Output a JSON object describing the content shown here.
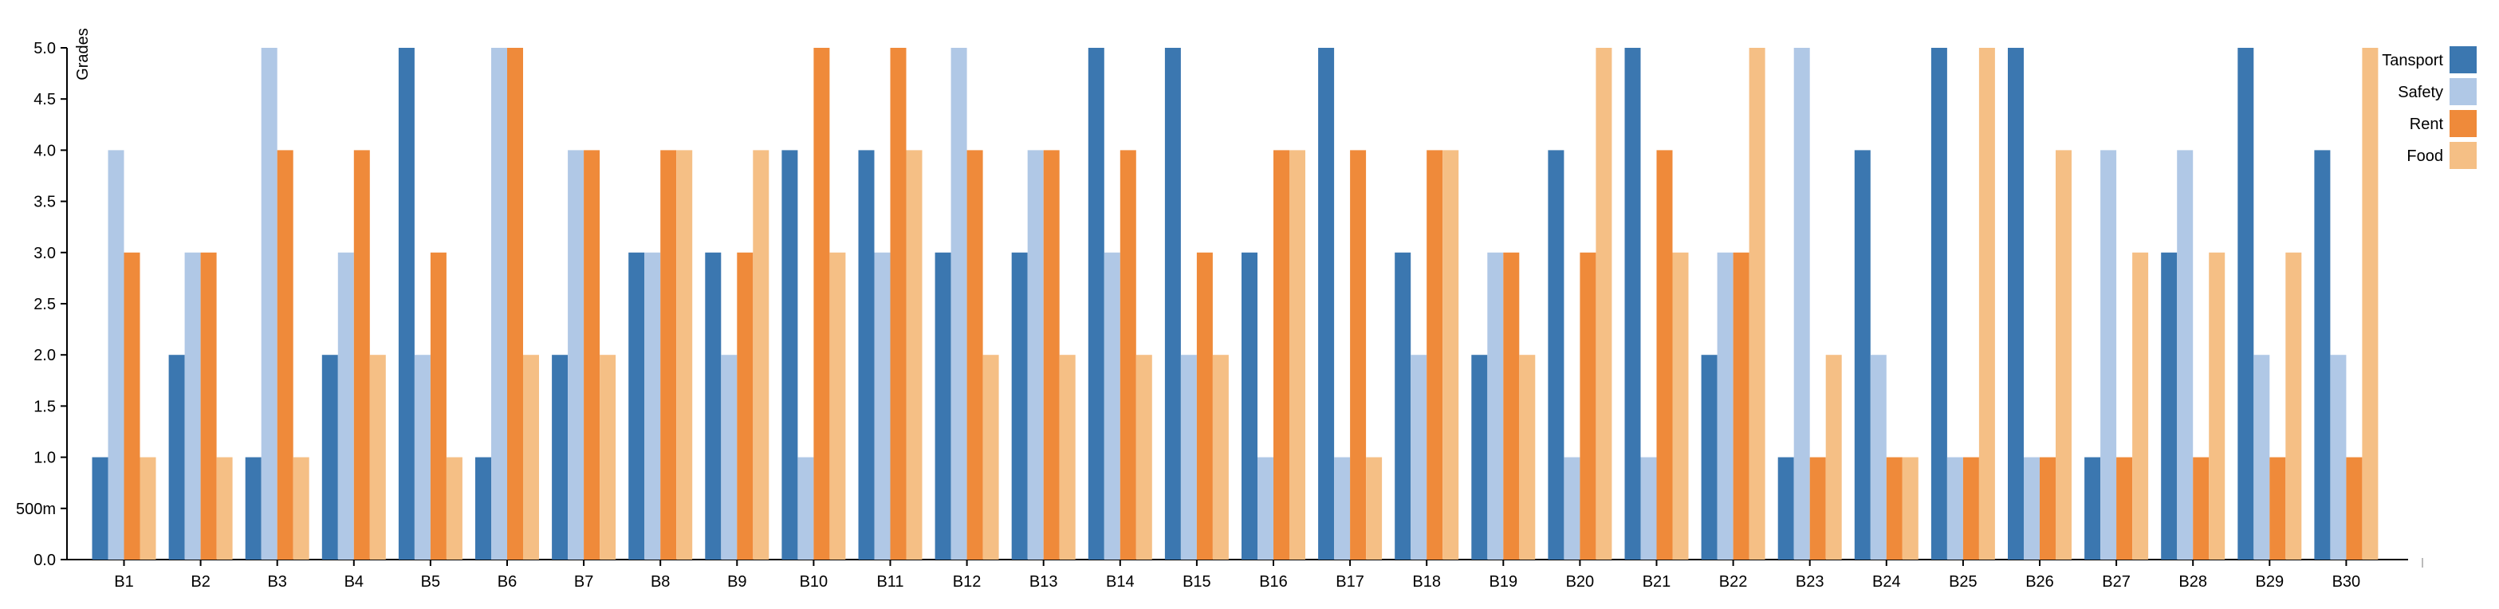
{
  "chart_data": {
    "type": "bar",
    "title": "",
    "xlabel": "",
    "ylabel": "Grades",
    "ylim": [
      0,
      5
    ],
    "y_ticks": [
      {
        "value": 0,
        "label": "0.0"
      },
      {
        "value": 0.5,
        "label": "500m"
      },
      {
        "value": 1,
        "label": "1.0"
      },
      {
        "value": 1.5,
        "label": "1.5"
      },
      {
        "value": 2,
        "label": "2.0"
      },
      {
        "value": 2.5,
        "label": "2.5"
      },
      {
        "value": 3,
        "label": "3.0"
      },
      {
        "value": 3.5,
        "label": "3.5"
      },
      {
        "value": 4,
        "label": "4.0"
      },
      {
        "value": 4.5,
        "label": "4.5"
      },
      {
        "value": 5,
        "label": "5.0"
      }
    ],
    "grid": false,
    "legend_position": "top-right",
    "categories": [
      "B1",
      "B2",
      "B3",
      "B4",
      "B5",
      "B6",
      "B7",
      "B8",
      "B9",
      "B10",
      "B11",
      "B12",
      "B13",
      "B14",
      "B15",
      "B16",
      "B17",
      "B18",
      "B19",
      "B20",
      "B21",
      "B22",
      "B23",
      "B24",
      "B25",
      "B26",
      "B27",
      "B28",
      "B29",
      "B30"
    ],
    "series": [
      {
        "name": "Tansport",
        "color": "#3b77b0",
        "values": [
          1,
          2,
          1,
          2,
          5,
          1,
          2,
          3,
          3,
          4,
          4,
          3,
          3,
          5,
          5,
          3,
          5,
          3,
          2,
          4,
          5,
          2,
          1,
          4,
          5,
          5,
          1,
          3,
          5,
          4
        ]
      },
      {
        "name": "Safety",
        "color": "#b0c8e6",
        "values": [
          4,
          3,
          5,
          3,
          2,
          5,
          4,
          3,
          2,
          1,
          3,
          5,
          4,
          3,
          2,
          1,
          1,
          2,
          3,
          1,
          1,
          3,
          5,
          2,
          1,
          1,
          4,
          4,
          2,
          2
        ]
      },
      {
        "name": "Rent",
        "color": "#ef8a3a",
        "values": [
          3,
          3,
          4,
          4,
          3,
          5,
          4,
          4,
          3,
          5,
          5,
          4,
          4,
          4,
          3,
          4,
          4,
          4,
          3,
          3,
          4,
          3,
          1,
          1,
          1,
          1,
          1,
          1,
          1,
          1
        ]
      },
      {
        "name": "Food",
        "color": "#f5bf85",
        "values": [
          1,
          1,
          1,
          2,
          1,
          2,
          2,
          4,
          4,
          3,
          4,
          2,
          2,
          2,
          2,
          4,
          1,
          4,
          2,
          5,
          3,
          5,
          2,
          1,
          5,
          4,
          3,
          3,
          3,
          5
        ]
      }
    ]
  }
}
